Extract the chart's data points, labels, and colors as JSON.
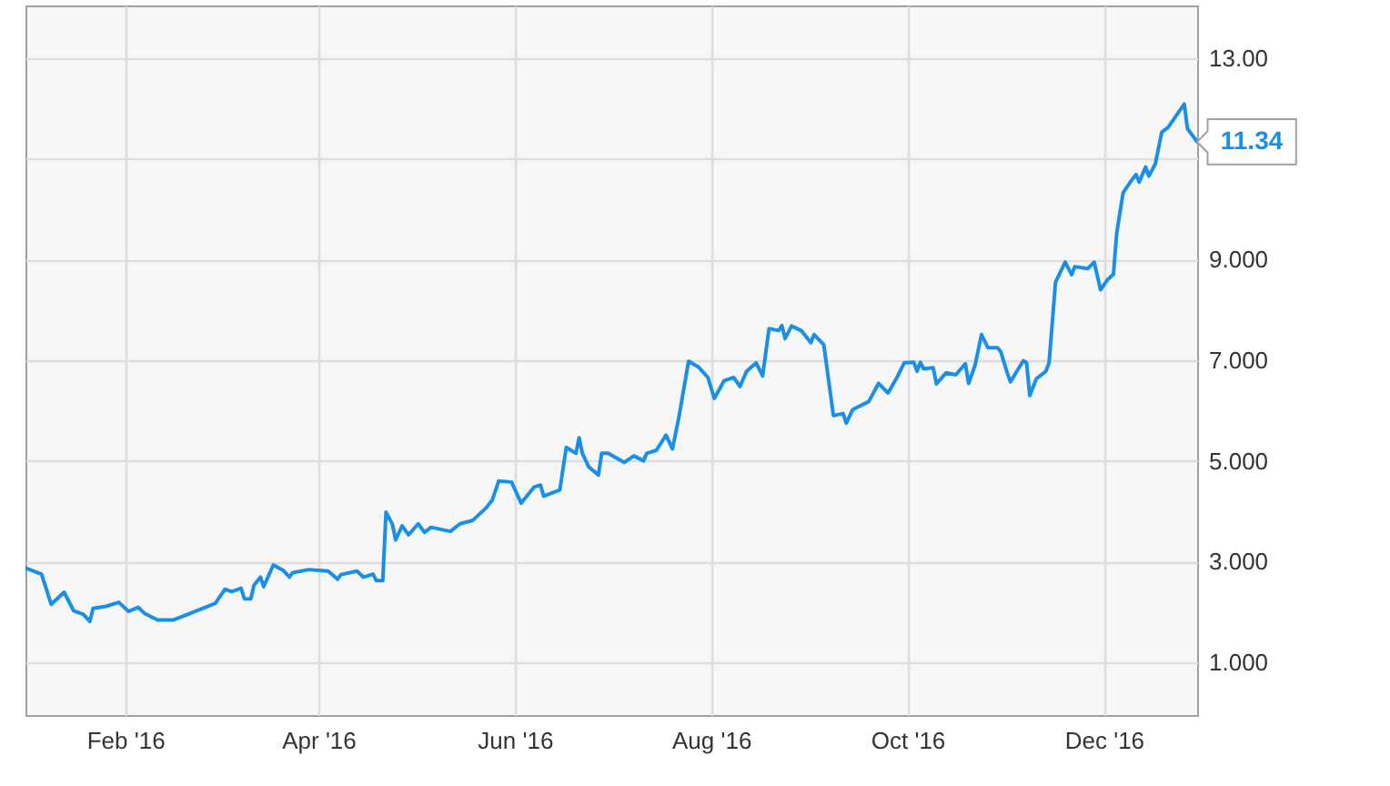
{
  "chart_data": {
    "type": "line",
    "color": "#1a8fe8",
    "line_style": "solid",
    "grid": true,
    "xlim": [
      "2016-01-01",
      "2016-12-30"
    ],
    "xticks": [
      {
        "value": "2016-02-01",
        "label": "Feb '16"
      },
      {
        "value": "2016-04-01",
        "label": "Apr '16"
      },
      {
        "value": "2016-06-01",
        "label": "Jun '16"
      },
      {
        "value": "2016-08-01",
        "label": "Aug '16"
      },
      {
        "value": "2016-10-01",
        "label": "Oct '16"
      },
      {
        "value": "2016-12-01",
        "label": "Dec '16"
      }
    ],
    "ylim": [
      -0.05,
      14.05
    ],
    "yticks": [
      {
        "value": 1,
        "label": "1.000"
      },
      {
        "value": 3,
        "label": "3.000"
      },
      {
        "value": 5,
        "label": "5.000"
      },
      {
        "value": 7,
        "label": "7.000"
      },
      {
        "value": 9,
        "label": "9.000"
      },
      {
        "value": 11,
        "label": null
      },
      {
        "value": 13,
        "label": "13.00"
      }
    ],
    "x": [
      "2016-01-01",
      "2016-01-06",
      "2016-01-09",
      "2016-01-13",
      "2016-01-16",
      "2016-01-19",
      "2016-01-21",
      "2016-01-22",
      "2016-01-26",
      "2016-01-30",
      "2016-02-02",
      "2016-02-05",
      "2016-02-07",
      "2016-02-11",
      "2016-02-16",
      "2016-02-22",
      "2016-02-29",
      "2016-03-03",
      "2016-03-05",
      "2016-03-08",
      "2016-03-09",
      "2016-03-11",
      "2016-03-12",
      "2016-03-14",
      "2016-03-15",
      "2016-03-18",
      "2016-03-21",
      "2016-03-23",
      "2016-03-24",
      "2016-03-29",
      "2016-04-04",
      "2016-04-07",
      "2016-04-08",
      "2016-04-13",
      "2016-04-15",
      "2016-04-18",
      "2016-04-19",
      "2016-04-21",
      "2016-04-22",
      "2016-04-24",
      "2016-04-25",
      "2016-04-27",
      "2016-04-29",
      "2016-05-02",
      "2016-05-04",
      "2016-05-06",
      "2016-05-12",
      "2016-05-15",
      "2016-05-18",
      "2016-05-19",
      "2016-05-23",
      "2016-05-25",
      "2016-05-27",
      "2016-05-31",
      "2016-06-03",
      "2016-06-07",
      "2016-06-09",
      "2016-06-10",
      "2016-06-15",
      "2016-06-17",
      "2016-06-20",
      "2016-06-21",
      "2016-06-22",
      "2016-06-24",
      "2016-06-27",
      "2016-06-28",
      "2016-06-30",
      "2016-07-05",
      "2016-07-08",
      "2016-07-11",
      "2016-07-12",
      "2016-07-15",
      "2016-07-18",
      "2016-07-20",
      "2016-07-22",
      "2016-07-25",
      "2016-07-28",
      "2016-07-31",
      "2016-08-02",
      "2016-08-05",
      "2016-08-08",
      "2016-08-10",
      "2016-08-12",
      "2016-08-15",
      "2016-08-17",
      "2016-08-19",
      "2016-08-22",
      "2016-08-23",
      "2016-08-24",
      "2016-08-26",
      "2016-08-29",
      "2016-09-01",
      "2016-09-02",
      "2016-09-05",
      "2016-09-08",
      "2016-09-11",
      "2016-09-12",
      "2016-09-14",
      "2016-09-19",
      "2016-09-22",
      "2016-09-25",
      "2016-09-28",
      "2016-09-30",
      "2016-10-03",
      "2016-10-04",
      "2016-10-05",
      "2016-10-06",
      "2016-10-09",
      "2016-10-10",
      "2016-10-13",
      "2016-10-16",
      "2016-10-19",
      "2016-10-20",
      "2016-10-22",
      "2016-10-24",
      "2016-10-26",
      "2016-10-29",
      "2016-10-30",
      "2016-11-01",
      "2016-11-02",
      "2016-11-06",
      "2016-11-07",
      "2016-11-08",
      "2016-11-10",
      "2016-11-13",
      "2016-11-14",
      "2016-11-16",
      "2016-11-19",
      "2016-11-21",
      "2016-11-22",
      "2016-11-26",
      "2016-11-28",
      "2016-11-30",
      "2016-12-02",
      "2016-12-04",
      "2016-12-05",
      "2016-12-07",
      "2016-12-09",
      "2016-12-11",
      "2016-12-12",
      "2016-12-14",
      "2016-12-15",
      "2016-12-17",
      "2016-12-19",
      "2016-12-21",
      "2016-12-26",
      "2016-12-27",
      "2016-12-30"
    ],
    "values": [
      2.87,
      2.75,
      2.15,
      2.39,
      2.02,
      1.95,
      1.81,
      2.07,
      2.11,
      2.19,
      2.01,
      2.09,
      1.97,
      1.84,
      1.84,
      1.99,
      2.17,
      2.45,
      2.4,
      2.47,
      2.26,
      2.26,
      2.53,
      2.69,
      2.5,
      2.93,
      2.83,
      2.69,
      2.78,
      2.84,
      2.81,
      2.65,
      2.74,
      2.81,
      2.69,
      2.75,
      2.62,
      2.62,
      3.98,
      3.74,
      3.43,
      3.71,
      3.53,
      3.75,
      3.58,
      3.68,
      3.6,
      3.75,
      3.8,
      3.82,
      4.06,
      4.22,
      4.6,
      4.58,
      4.16,
      4.48,
      4.52,
      4.3,
      4.42,
      5.27,
      5.15,
      5.46,
      5.15,
      4.88,
      4.72,
      5.15,
      5.15,
      4.97,
      5.1,
      5.0,
      5.15,
      5.21,
      5.51,
      5.24,
      5.87,
      6.98,
      6.87,
      6.66,
      6.24,
      6.59,
      6.66,
      6.48,
      6.78,
      6.95,
      6.69,
      7.63,
      7.59,
      7.69,
      7.43,
      7.68,
      7.59,
      7.35,
      7.51,
      7.31,
      5.9,
      5.94,
      5.75,
      6.02,
      6.18,
      6.54,
      6.35,
      6.69,
      6.95,
      6.96,
      6.78,
      6.96,
      6.83,
      6.85,
      6.53,
      6.75,
      6.71,
      6.93,
      6.54,
      6.9,
      7.51,
      7.25,
      7.25,
      7.17,
      6.75,
      6.57,
      6.99,
      6.95,
      6.3,
      6.63,
      6.78,
      6.95,
      8.55,
      8.95,
      8.7,
      8.86,
      8.82,
      8.95,
      8.4,
      8.59,
      8.71,
      9.52,
      10.33,
      10.52,
      10.69,
      10.54,
      10.84,
      10.66,
      10.9,
      11.53,
      11.63,
      12.09,
      11.6,
      11.34
    ],
    "annotations": [
      {
        "text": "11.34",
        "x": "2016-12-30",
        "y": 11.34
      }
    ]
  }
}
